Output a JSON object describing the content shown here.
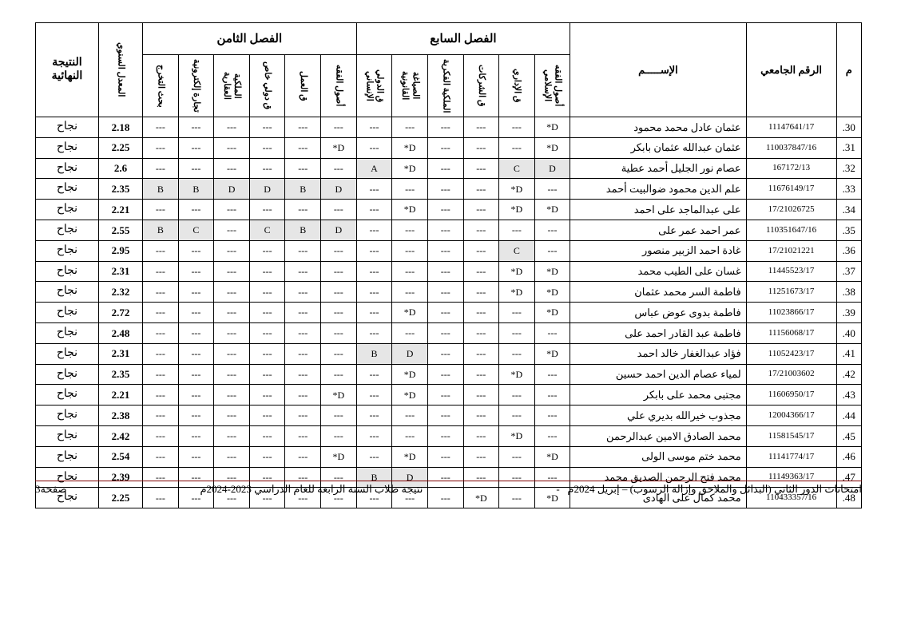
{
  "header": {
    "idx": "م",
    "uid": "الرقم الجامعي",
    "name": "الإســـــم",
    "sem7": "الفصل السابع",
    "sem8": "الفصل الثامن",
    "avg": "المعدل السنوي",
    "result": "النتيجة النهائية",
    "sem7_cols": [
      "أصول الفقه الإسلامي",
      "ق الإداري",
      "ق الشركات",
      "الملكية الفكرية",
      "الصياغة القانونية",
      "ق الدولي الإنساني"
    ],
    "sem8_cols": [
      "أصول الفقه",
      "ق العمل",
      "ق دولي خاص",
      "الملكية العقارية",
      "تجارة إلكترونية",
      "بحث التخرج"
    ]
  },
  "footer": {
    "right": "امتحانات الدور الثاني (البدائل والملاحق وإزالة الرسوب) – إبريل 2024م",
    "center": "نتيجة طلاب السنة الرابعة للعام الدراسي 2023-2024م",
    "left": "صفحة3",
    "sep": "-"
  },
  "rows": [
    {
      "idx": "30.",
      "uid": "11147641/17",
      "name": "عثمان عادل محمد محمود",
      "s7": [
        "D*",
        "---",
        "---",
        "---",
        "---",
        "---"
      ],
      "s8": [
        "---",
        "---",
        "---",
        "---",
        "---",
        "---"
      ],
      "avg": "2.18",
      "res": "نجاح",
      "sh7": [
        0,
        0,
        0,
        0,
        0,
        0
      ],
      "sh8": [
        0,
        0,
        0,
        0,
        0,
        0
      ]
    },
    {
      "idx": "31.",
      "uid": "110037847/16",
      "name": "عثمان عبدالله عثمان بابكر",
      "s7": [
        "D*",
        "---",
        "---",
        "---",
        "D*",
        "---"
      ],
      "s8": [
        "D*",
        "---",
        "---",
        "---",
        "---",
        "---"
      ],
      "avg": "2.25",
      "res": "نجاح",
      "sh7": [
        0,
        0,
        0,
        0,
        0,
        0
      ],
      "sh8": [
        0,
        0,
        0,
        0,
        0,
        0
      ]
    },
    {
      "idx": "32.",
      "uid": "167172/13",
      "name": "عصام نور الجليل أحمد عطية",
      "s7": [
        "D",
        "C",
        "---",
        "---",
        "D*",
        "A"
      ],
      "s8": [
        "---",
        "---",
        "---",
        "---",
        "---",
        "---"
      ],
      "avg": "2.6",
      "res": "نجاح",
      "sh7": [
        1,
        1,
        0,
        0,
        0,
        1
      ],
      "sh8": [
        0,
        0,
        0,
        0,
        0,
        0
      ]
    },
    {
      "idx": "33.",
      "uid": "11676149/17",
      "name": "علم الدين محمود ضوالبيت أحمد",
      "s7": [
        "---",
        "D*",
        "---",
        "---",
        "---",
        "---"
      ],
      "s8": [
        "D",
        "B",
        "D",
        "D",
        "B",
        "B"
      ],
      "avg": "2.35",
      "res": "نجاح",
      "sh7": [
        0,
        0,
        0,
        0,
        0,
        0
      ],
      "sh8": [
        1,
        1,
        1,
        1,
        1,
        1
      ]
    },
    {
      "idx": "34.",
      "uid": "17/21026725",
      "name": "على عبدالماجد على احمد",
      "s7": [
        "D*",
        "D*",
        "---",
        "---",
        "D*",
        "---"
      ],
      "s8": [
        "---",
        "---",
        "---",
        "---",
        "---",
        "---"
      ],
      "avg": "2.21",
      "res": "نجاح",
      "sh7": [
        0,
        0,
        0,
        0,
        0,
        0
      ],
      "sh8": [
        0,
        0,
        0,
        0,
        0,
        0
      ]
    },
    {
      "idx": "35.",
      "uid": "110351647/16",
      "name": "عمر احمد عمر على",
      "s7": [
        "---",
        "---",
        "---",
        "---",
        "---",
        "---"
      ],
      "s8": [
        "D",
        "B",
        "C",
        "---",
        "C",
        "B"
      ],
      "avg": "2.55",
      "res": "نجاح",
      "sh7": [
        0,
        0,
        0,
        0,
        0,
        0
      ],
      "sh8": [
        1,
        1,
        1,
        0,
        1,
        1
      ]
    },
    {
      "idx": "36.",
      "uid": "17/21021221",
      "name": "غادة احمد الزبير منصور",
      "s7": [
        "---",
        "C",
        "---",
        "---",
        "---",
        "---"
      ],
      "s8": [
        "---",
        "---",
        "---",
        "---",
        "---",
        "---"
      ],
      "avg": "2.95",
      "res": "نجاح",
      "sh7": [
        0,
        1,
        0,
        0,
        0,
        0
      ],
      "sh8": [
        0,
        0,
        0,
        0,
        0,
        0
      ]
    },
    {
      "idx": "37.",
      "uid": "11445523/17",
      "name": "غسان على الطيب محمد",
      "s7": [
        "D*",
        "D*",
        "---",
        "---",
        "---",
        "---"
      ],
      "s8": [
        "---",
        "---",
        "---",
        "---",
        "---",
        "---"
      ],
      "avg": "2.31",
      "res": "نجاح",
      "sh7": [
        0,
        0,
        0,
        0,
        0,
        0
      ],
      "sh8": [
        0,
        0,
        0,
        0,
        0,
        0
      ]
    },
    {
      "idx": "38.",
      "uid": "11251673/17",
      "name": "فاطمة السر محمد عثمان",
      "s7": [
        "D*",
        "D*",
        "---",
        "---",
        "---",
        "---"
      ],
      "s8": [
        "---",
        "---",
        "---",
        "---",
        "---",
        "---"
      ],
      "avg": "2.32",
      "res": "نجاح",
      "sh7": [
        0,
        0,
        0,
        0,
        0,
        0
      ],
      "sh8": [
        0,
        0,
        0,
        0,
        0,
        0
      ]
    },
    {
      "idx": "39.",
      "uid": "11023866/17",
      "name": "فاطمة بدوى عوض عباس",
      "s7": [
        "D*",
        "---",
        "---",
        "---",
        "D*",
        "---"
      ],
      "s8": [
        "---",
        "---",
        "---",
        "---",
        "---",
        "---"
      ],
      "avg": "2.72",
      "res": "نجاح",
      "sh7": [
        0,
        0,
        0,
        0,
        0,
        0
      ],
      "sh8": [
        0,
        0,
        0,
        0,
        0,
        0
      ]
    },
    {
      "idx": "40.",
      "uid": "11156068/17",
      "name": "فاطمة عبد القادر احمد على",
      "s7": [
        "---",
        "---",
        "---",
        "---",
        "---",
        "---"
      ],
      "s8": [
        "---",
        "---",
        "---",
        "---",
        "---",
        "---"
      ],
      "avg": "2.48",
      "res": "نجاح",
      "sh7": [
        0,
        0,
        0,
        0,
        0,
        0
      ],
      "sh8": [
        0,
        0,
        0,
        0,
        0,
        0
      ]
    },
    {
      "idx": "41.",
      "uid": "11052423/17",
      "name": "فؤاد عبدالغفار خالد احمد",
      "s7": [
        "D*",
        "---",
        "---",
        "---",
        "D",
        "B"
      ],
      "s8": [
        "---",
        "---",
        "---",
        "---",
        "---",
        "---"
      ],
      "avg": "2.31",
      "res": "نجاح",
      "sh7": [
        0,
        0,
        0,
        0,
        1,
        1
      ],
      "sh8": [
        0,
        0,
        0,
        0,
        0,
        0
      ]
    },
    {
      "idx": "42.",
      "uid": "17/21003602",
      "name": "لمياء عصام الدين احمد حسين",
      "s7": [
        "---",
        "D*",
        "---",
        "---",
        "D*",
        "---"
      ],
      "s8": [
        "---",
        "---",
        "---",
        "---",
        "---",
        "---"
      ],
      "avg": "2.35",
      "res": "نجاح",
      "sh7": [
        0,
        0,
        0,
        0,
        0,
        0
      ],
      "sh8": [
        0,
        0,
        0,
        0,
        0,
        0
      ]
    },
    {
      "idx": "43.",
      "uid": "11606950/17",
      "name": "مجتبى محمد على بابكر",
      "s7": [
        "---",
        "---",
        "---",
        "---",
        "D*",
        "---"
      ],
      "s8": [
        "D*",
        "---",
        "---",
        "---",
        "---",
        "---"
      ],
      "avg": "2.21",
      "res": "نجاح",
      "sh7": [
        0,
        0,
        0,
        0,
        0,
        0
      ],
      "sh8": [
        0,
        0,
        0,
        0,
        0,
        0
      ]
    },
    {
      "idx": "44.",
      "uid": "12004366/17",
      "name": "مجذوب خيرالله بديري علي",
      "s7": [
        "---",
        "---",
        "---",
        "---",
        "---",
        "---"
      ],
      "s8": [
        "---",
        "---",
        "---",
        "---",
        "---",
        "---"
      ],
      "avg": "2.38",
      "res": "نجاح",
      "sh7": [
        0,
        0,
        0,
        0,
        0,
        0
      ],
      "sh8": [
        0,
        0,
        0,
        0,
        0,
        0
      ]
    },
    {
      "idx": "45.",
      "uid": "11581545/17",
      "name": "محمد الصادق الامين عبدالرحمن",
      "s7": [
        "---",
        "D*",
        "---",
        "---",
        "---",
        "---"
      ],
      "s8": [
        "---",
        "---",
        "---",
        "---",
        "---",
        "---"
      ],
      "avg": "2.42",
      "res": "نجاح",
      "sh7": [
        0,
        0,
        0,
        0,
        0,
        0
      ],
      "sh8": [
        0,
        0,
        0,
        0,
        0,
        0
      ]
    },
    {
      "idx": "46.",
      "uid": "11141774/17",
      "name": "محمد ختم موسى الولى",
      "s7": [
        "D*",
        "---",
        "---",
        "---",
        "D*",
        "---"
      ],
      "s8": [
        "D*",
        "---",
        "---",
        "---",
        "---",
        "---"
      ],
      "avg": "2.54",
      "res": "نجاح",
      "sh7": [
        0,
        0,
        0,
        0,
        0,
        0
      ],
      "sh8": [
        0,
        0,
        0,
        0,
        0,
        0
      ]
    },
    {
      "idx": "47.",
      "uid": "11149363/17",
      "name": "محمد فتح الرحمن الصديق محمد",
      "s7": [
        "---",
        "---",
        "---",
        "---",
        "D",
        "B"
      ],
      "s8": [
        "---",
        "---",
        "---",
        "---",
        "---",
        "---"
      ],
      "avg": "2.39",
      "res": "نجاح",
      "sh7": [
        0,
        0,
        0,
        0,
        1,
        1
      ],
      "sh8": [
        0,
        0,
        0,
        0,
        0,
        0
      ]
    },
    {
      "idx": "48.",
      "uid": "110433357/16",
      "name": "محمد كمال على الهادى",
      "s7": [
        "D*",
        "---",
        "D*",
        "---",
        "---",
        "---"
      ],
      "s8": [
        "---",
        "---",
        "---",
        "---",
        "---",
        "---"
      ],
      "avg": "2.25",
      "res": "نجاح",
      "sh7": [
        0,
        0,
        0,
        0,
        0,
        0
      ],
      "sh8": [
        0,
        0,
        0,
        0,
        0,
        0
      ]
    }
  ]
}
